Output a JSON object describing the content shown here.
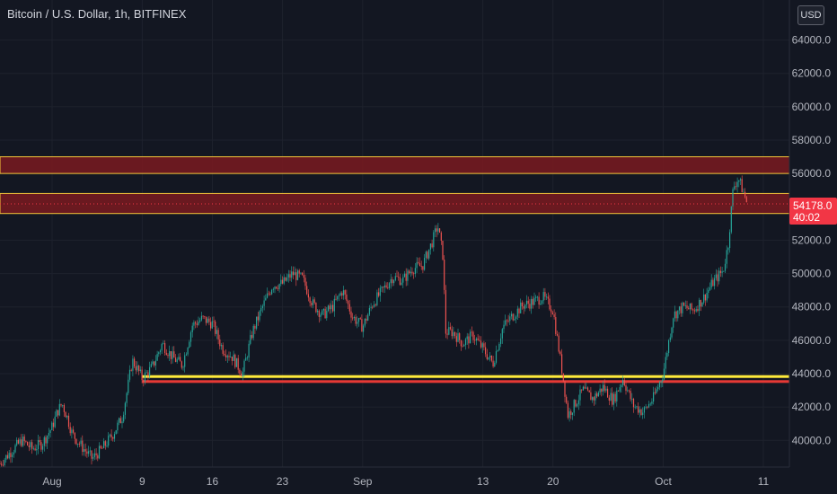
{
  "header": {
    "symbol_title": "Bitcoin / U.S. Dollar, 1h, BITFINEX"
  },
  "currency_badge": "USD",
  "price_label": {
    "value": "54178.0",
    "countdown": "40:02",
    "color": "#f23645"
  },
  "colors": {
    "background": "#131722",
    "bull": "#26a69a",
    "bear": "#ef5350",
    "zone_fill": "#7a1a20",
    "zone_border": "#f5c63a",
    "support_line": "#ffeb3b",
    "support_red": "#e53935",
    "grid": "#1e222d"
  },
  "chart_data": {
    "type": "candlestick",
    "y_ticks": [
      "40000.0",
      "42000.0",
      "44000.0",
      "46000.0",
      "48000.0",
      "50000.0",
      "52000.0",
      "54000.0",
      "56000.0",
      "58000.0",
      "60000.0",
      "62000.0",
      "64000.0"
    ],
    "ylim": [
      38400,
      66400
    ],
    "x_ticks": [
      {
        "label": "Aug",
        "day": 0
      },
      {
        "label": "9",
        "day": 9
      },
      {
        "label": "16",
        "day": 16
      },
      {
        "label": "23",
        "day": 23
      },
      {
        "label": "Sep",
        "day": 31
      },
      {
        "label": "13",
        "day": 43
      },
      {
        "label": "20",
        "day": 50
      },
      {
        "label": "Oct",
        "day": 61
      },
      {
        "label": "11",
        "day": 71
      }
    ],
    "xlim": [
      -5.2,
      73.6
    ],
    "resistance_zones": [
      [
        56000,
        57000
      ],
      [
        53600,
        54800
      ]
    ],
    "support_lines": [
      43800,
      43500
    ],
    "price_path": [
      [
        -5.2,
        38600
      ],
      [
        -4,
        39400
      ],
      [
        -3,
        40000
      ],
      [
        -2,
        39500
      ],
      [
        -1,
        39800
      ],
      [
        0,
        40800
      ],
      [
        0.5,
        41700
      ],
      [
        1,
        42200
      ],
      [
        1.5,
        41400
      ],
      [
        2,
        40400
      ],
      [
        3,
        39600
      ],
      [
        4,
        38900
      ],
      [
        5,
        39500
      ],
      [
        6,
        40300
      ],
      [
        7,
        41400
      ],
      [
        7.5,
        43000
      ],
      [
        8,
        44800
      ],
      [
        8.5,
        44300
      ],
      [
        9,
        43700
      ],
      [
        10,
        44400
      ],
      [
        11,
        45800
      ],
      [
        11.5,
        45400
      ],
      [
        12,
        45000
      ],
      [
        13,
        44500
      ],
      [
        14,
        46900
      ],
      [
        15,
        47300
      ],
      [
        16,
        47000
      ],
      [
        17,
        45500
      ],
      [
        18,
        45000
      ],
      [
        19,
        44000
      ],
      [
        20,
        46500
      ],
      [
        21,
        48000
      ],
      [
        22,
        49300
      ],
      [
        23,
        49400
      ],
      [
        24,
        50000
      ],
      [
        25,
        49700
      ],
      [
        26,
        48200
      ],
      [
        27,
        47500
      ],
      [
        28,
        48000
      ],
      [
        29,
        49000
      ],
      [
        30,
        47400
      ],
      [
        31,
        46800
      ],
      [
        32,
        48200
      ],
      [
        33,
        49000
      ],
      [
        34,
        49800
      ],
      [
        35,
        49600
      ],
      [
        36,
        50300
      ],
      [
        37,
        50500
      ],
      [
        38,
        52000
      ],
      [
        38.5,
        52900
      ],
      [
        39,
        51100
      ],
      [
        39.3,
        46500
      ],
      [
        40,
        46500
      ],
      [
        41,
        45800
      ],
      [
        42,
        46300
      ],
      [
        43,
        45500
      ],
      [
        44,
        44600
      ],
      [
        45,
        46800
      ],
      [
        46,
        47500
      ],
      [
        47,
        48100
      ],
      [
        48,
        48300
      ],
      [
        49,
        48600
      ],
      [
        50,
        47800
      ],
      [
        51,
        43800
      ],
      [
        51.5,
        41500
      ],
      [
        52,
        42000
      ],
      [
        53,
        43000
      ],
      [
        54,
        42500
      ],
      [
        55,
        43200
      ],
      [
        56,
        42400
      ],
      [
        57,
        43700
      ],
      [
        58,
        42100
      ],
      [
        59,
        41700
      ],
      [
        60,
        42500
      ],
      [
        61,
        44000
      ],
      [
        62,
        47500
      ],
      [
        63,
        48000
      ],
      [
        64,
        47800
      ],
      [
        65,
        48500
      ],
      [
        66,
        49500
      ],
      [
        67,
        50200
      ],
      [
        67.5,
        51800
      ],
      [
        68,
        55200
      ],
      [
        68.5,
        55700
      ],
      [
        69,
        54900
      ],
      [
        69.4,
        54178
      ]
    ]
  }
}
